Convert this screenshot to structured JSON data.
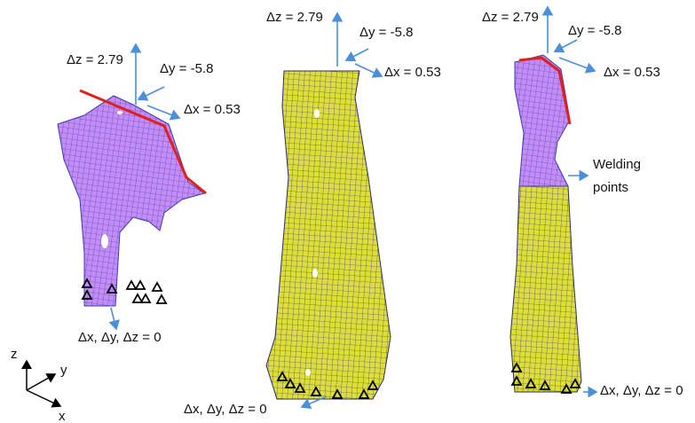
{
  "panels": [
    {
      "dz": "Δz = 2.79",
      "dy": "Δy = -5.8",
      "dx": "Δx = 0.53",
      "fixed": "Δx, Δy, Δz = 0"
    },
    {
      "dz": "Δz = 2.79",
      "dy": "Δy = -5.8",
      "dx": "Δx = 0.53",
      "fixed": "Δx, Δy, Δz = 0"
    },
    {
      "dz": "Δz = 2.79",
      "dy": "Δy = -5.8",
      "dx": "Δx = 0.53",
      "fixed": "Δx, Δy, Δz = 0"
    }
  ],
  "welding_label": [
    "Welding",
    "points"
  ],
  "axes": {
    "z": "z",
    "y": "y",
    "x": "x"
  }
}
